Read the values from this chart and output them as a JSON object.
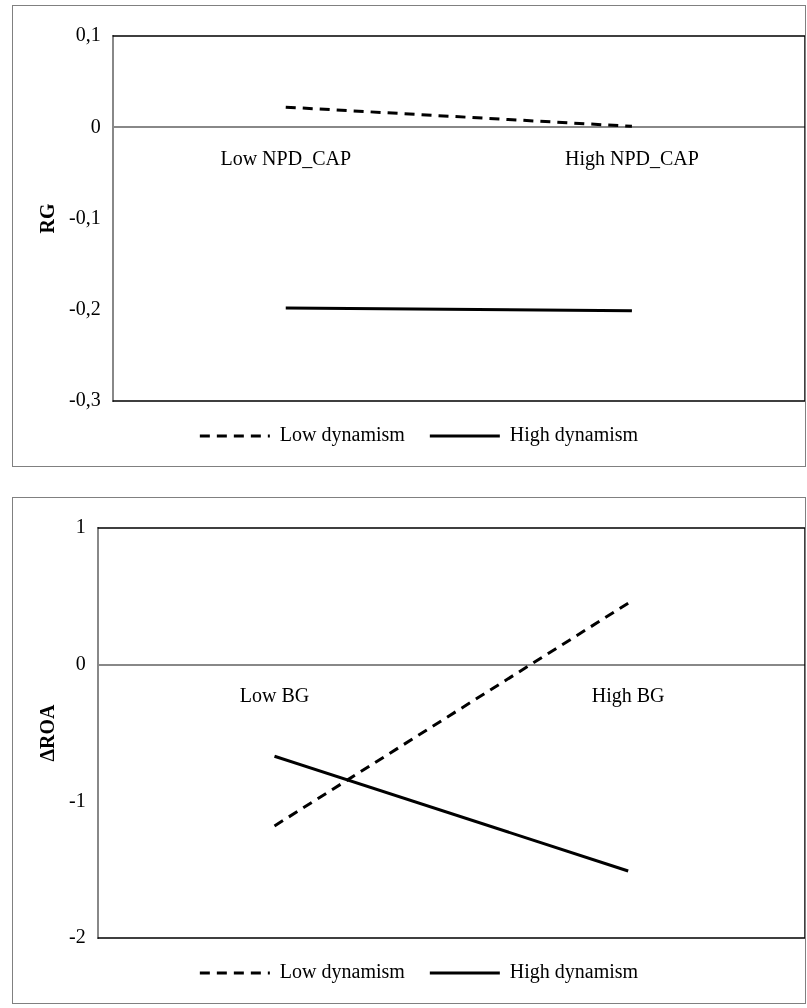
{
  "chart_data": [
    {
      "type": "line",
      "ylabel": "RG",
      "categories": [
        "Low NPD_CAP",
        "High NPD_CAP"
      ],
      "ylim": [
        -0.3,
        0.1
      ],
      "yticks": [
        {
          "value": -0.3,
          "label": "-0,3"
        },
        {
          "value": -0.2,
          "label": "-0,2"
        },
        {
          "value": -0.1,
          "label": "-0,1"
        },
        0,
        {
          "value": 0.1,
          "label": "0,1"
        }
      ],
      "legend": "bottom",
      "marker": "none",
      "series": [
        {
          "name": "Low dynamism",
          "color": "#000000",
          "line_style": "dashed",
          "values": [
            0.022,
            0.001
          ]
        },
        {
          "name": "High dynamism",
          "color": "#000000",
          "line_style": "solid",
          "values": [
            -0.198,
            -0.201
          ]
        }
      ]
    },
    {
      "type": "line",
      "ylabel": "ΔROA",
      "categories": [
        "Low BG",
        "High BG"
      ],
      "ylim": [
        -2,
        1
      ],
      "yticks": [
        -2,
        -1,
        0,
        1
      ],
      "legend": "bottom",
      "marker": "none",
      "series": [
        {
          "name": "Low dynamism",
          "color": "#000000",
          "line_style": "dashed",
          "values": [
            -1.18,
            0.45
          ]
        },
        {
          "name": "High dynamism",
          "color": "#000000",
          "line_style": "solid",
          "values": [
            -0.67,
            -1.51
          ]
        }
      ]
    }
  ]
}
